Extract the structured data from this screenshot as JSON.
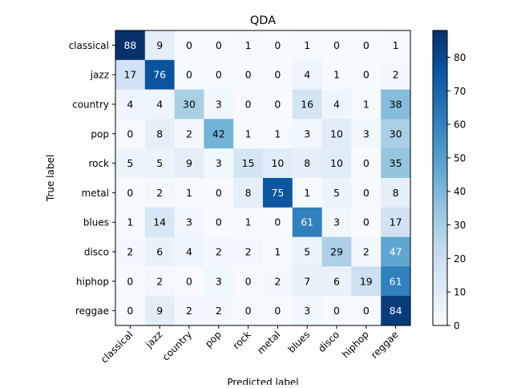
{
  "chart_data": {
    "type": "heatmap",
    "title": "QDA",
    "xlabel": "Predicted label",
    "ylabel": "True label",
    "x_categories": [
      "classical",
      "jazz",
      "country",
      "pop",
      "rock",
      "metal",
      "blues",
      "disco",
      "hiphop",
      "reggae"
    ],
    "y_categories": [
      "classical",
      "jazz",
      "country",
      "pop",
      "rock",
      "metal",
      "blues",
      "disco",
      "hiphop",
      "reggae"
    ],
    "values": [
      [
        88,
        9,
        0,
        0,
        1,
        0,
        1,
        0,
        0,
        1
      ],
      [
        17,
        76,
        0,
        0,
        0,
        0,
        4,
        1,
        0,
        2
      ],
      [
        4,
        4,
        30,
        3,
        0,
        0,
        16,
        4,
        1,
        38
      ],
      [
        0,
        8,
        2,
        42,
        1,
        1,
        3,
        10,
        3,
        30
      ],
      [
        5,
        5,
        9,
        3,
        15,
        10,
        8,
        10,
        0,
        35
      ],
      [
        0,
        2,
        1,
        0,
        8,
        75,
        1,
        5,
        0,
        8
      ],
      [
        1,
        14,
        3,
        0,
        1,
        0,
        61,
        3,
        0,
        17
      ],
      [
        2,
        6,
        4,
        2,
        2,
        1,
        5,
        29,
        2,
        47
      ],
      [
        0,
        2,
        0,
        3,
        0,
        2,
        7,
        6,
        19,
        61
      ],
      [
        0,
        9,
        2,
        2,
        0,
        0,
        3,
        0,
        0,
        84
      ]
    ],
    "colormap": "Blues",
    "colorbar": {
      "range": [
        0,
        88
      ],
      "ticks": [
        "0",
        "10",
        "20",
        "30",
        "40",
        "50",
        "60",
        "70",
        "80"
      ]
    },
    "grid": false
  }
}
